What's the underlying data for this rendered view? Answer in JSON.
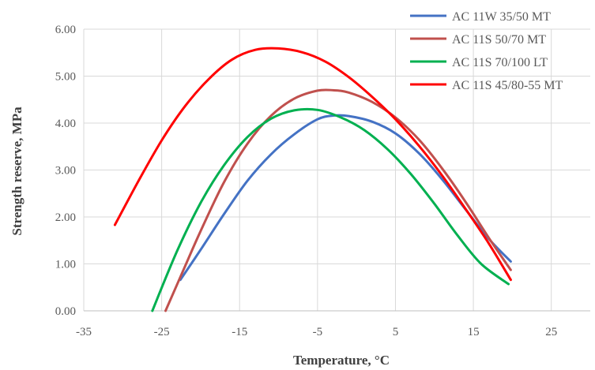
{
  "chart_data": {
    "type": "line",
    "title": "",
    "xlabel": "Temperature, °C",
    "ylabel": "Strength reserve, MPa",
    "xlim": [
      -35,
      30
    ],
    "ylim": [
      0,
      6
    ],
    "x_ticks": [
      -35,
      -25,
      -15,
      -5,
      5,
      15,
      25
    ],
    "x_tick_labels": [
      "-35",
      "-25",
      "-15",
      "-5",
      "5",
      "15",
      "25"
    ],
    "y_ticks": [
      0,
      1,
      2,
      3,
      4,
      5,
      6
    ],
    "y_tick_labels": [
      "0.00",
      "1.00",
      "2.00",
      "3.00",
      "4.00",
      "5.00",
      "6.00"
    ],
    "grid": "vertical and horizontal major gridlines",
    "legend_position": "top-right",
    "series": [
      {
        "name": "AC 11W 35/50 MT",
        "color": "#4472c4",
        "x": [
          -22.6,
          -20,
          -17,
          -14,
          -11,
          -8,
          -5,
          -3,
          -1,
          2,
          5,
          8,
          11,
          14,
          17,
          19.8
        ],
        "y": [
          0.66,
          1.3,
          2.06,
          2.77,
          3.33,
          3.76,
          4.08,
          4.16,
          4.15,
          4.03,
          3.78,
          3.36,
          2.8,
          2.16,
          1.53,
          1.05
        ]
      },
      {
        "name": "AC 11S 50/70 MT",
        "color": "#c0504d",
        "x": [
          -24.5,
          -22,
          -20,
          -17,
          -14,
          -11,
          -8,
          -5,
          -3,
          -1,
          2,
          5,
          8,
          11,
          14,
          17,
          19.8
        ],
        "y": [
          0.0,
          0.95,
          1.7,
          2.74,
          3.56,
          4.15,
          4.52,
          4.69,
          4.7,
          4.65,
          4.45,
          4.12,
          3.65,
          3.03,
          2.32,
          1.55,
          0.87
        ]
      },
      {
        "name": "AC 11S 70/100 LT",
        "color": "#00b050",
        "x": [
          -26.2,
          -23,
          -20,
          -17,
          -14,
          -11,
          -8,
          -5,
          -2,
          1,
          4,
          7,
          10,
          13,
          16,
          19.5
        ],
        "y": [
          0.0,
          1.28,
          2.3,
          3.1,
          3.7,
          4.09,
          4.27,
          4.28,
          4.12,
          3.85,
          3.44,
          2.91,
          2.28,
          1.6,
          1.0,
          0.57
        ]
      },
      {
        "name": "AC 11S 45/80-55 MT",
        "color": "#ff0000",
        "x": [
          -31,
          -28,
          -25,
          -22,
          -19,
          -16,
          -13,
          -10,
          -7,
          -4,
          -1,
          2,
          5,
          8,
          11,
          14,
          17,
          19.8
        ],
        "y": [
          1.83,
          2.76,
          3.63,
          4.36,
          4.93,
          5.35,
          5.56,
          5.59,
          5.51,
          5.31,
          4.98,
          4.56,
          4.08,
          3.52,
          2.88,
          2.17,
          1.43,
          0.66
        ]
      }
    ]
  }
}
